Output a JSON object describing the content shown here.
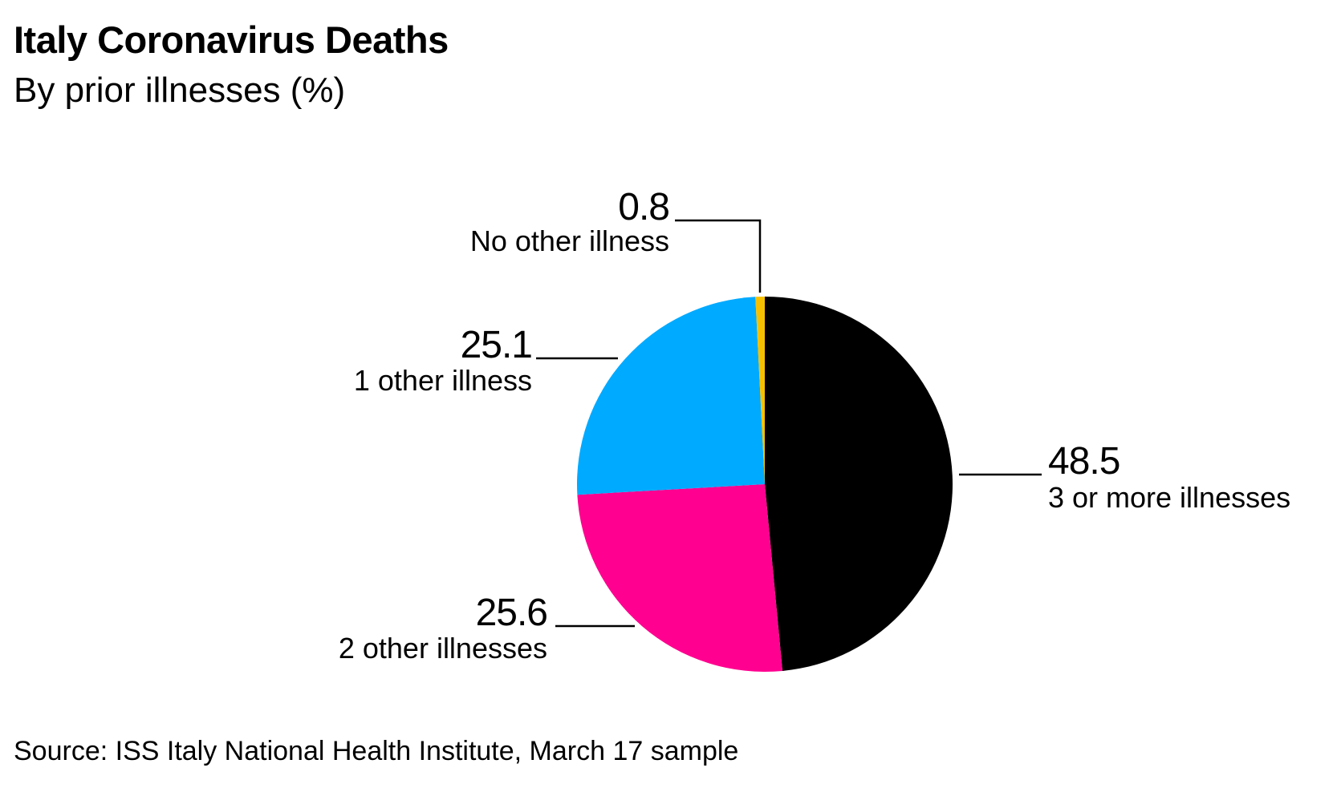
{
  "chart_data": {
    "type": "pie",
    "title": "Italy Coronavirus Deaths",
    "subtitle": "By prior illnesses (%)",
    "source": "Source: ISS Italy National Health Institute, March 17 sample",
    "slices": [
      {
        "label": "3 or more illnesses",
        "value": 48.5,
        "value_text": "48.5",
        "color": "#000000"
      },
      {
        "label": "2 other illnesses",
        "value": 25.6,
        "value_text": "25.6",
        "color": "#ff0090"
      },
      {
        "label": "1 other illness",
        "value": 25.1,
        "value_text": "25.1",
        "color": "#00aaff"
      },
      {
        "label": "No other illness",
        "value": 0.8,
        "value_text": "0.8",
        "color": "#f6c000"
      }
    ],
    "start": "12 o'clock",
    "direction": "clockwise"
  }
}
